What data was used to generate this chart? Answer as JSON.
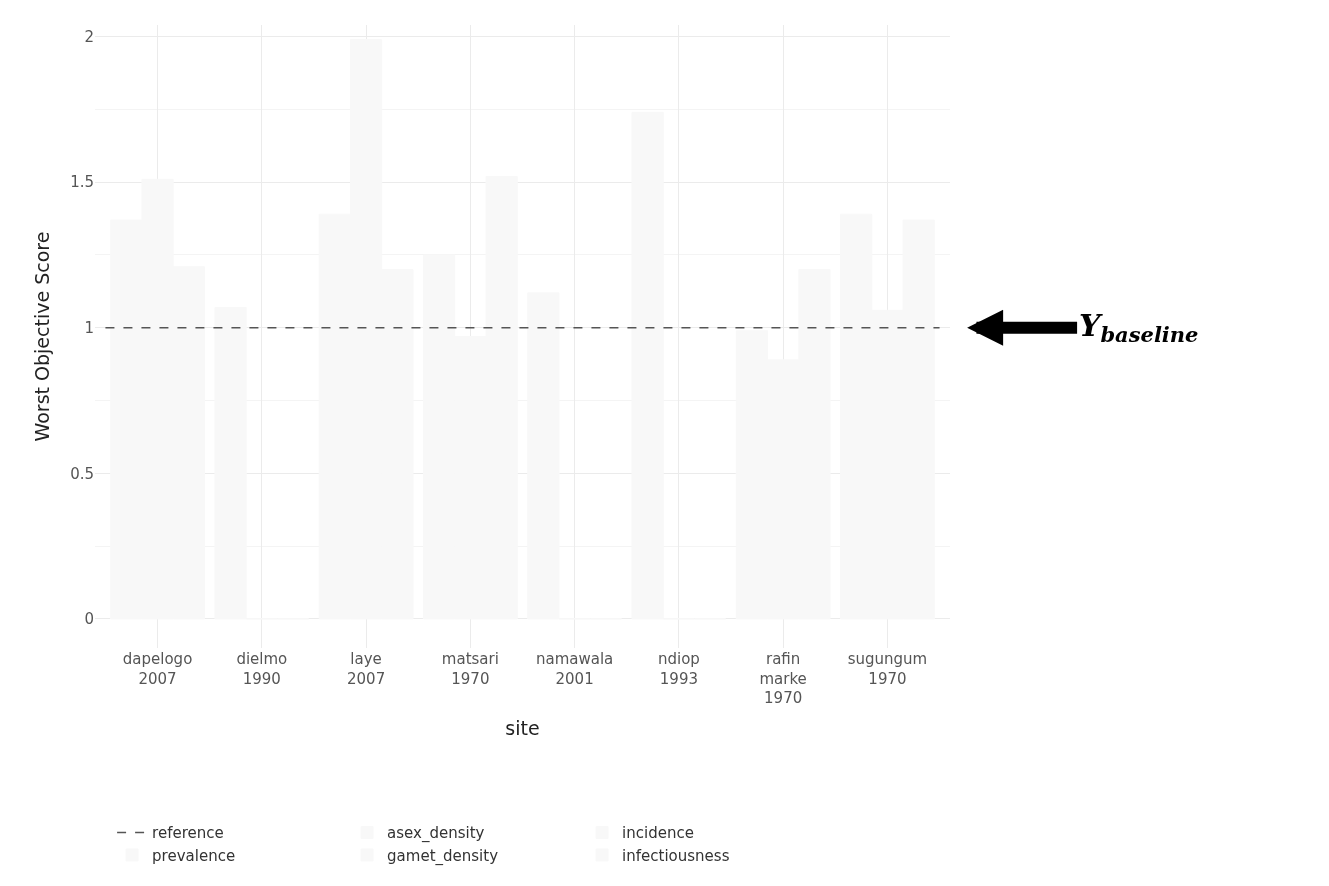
{
  "chart_data": {
    "type": "bar",
    "xlabel": "site",
    "ylabel": "Worst Objective Score",
    "categories": [
      "dapelogo\n2007",
      "dielmo\n1990",
      "laye\n2007",
      "matsari\n1970",
      "namawala\n2001",
      "ndiop\n1993",
      "rafin\nmarke\n1970",
      "sugungum\n1970"
    ],
    "series": [
      {
        "name": "asex_density",
        "color": "#f8f8f8",
        "values": [
          1.37,
          1.07,
          1.39,
          1.25,
          1.12,
          1.74,
          0.99,
          1.39
        ]
      },
      {
        "name": "gamet_density",
        "color": "#f8f8f8",
        "values": [
          null,
          null,
          null,
          null,
          null,
          null,
          null,
          null
        ]
      },
      {
        "name": "incidence",
        "color": "#f8f8f8",
        "values": [
          1.51,
          0,
          1.99,
          0.97,
          0,
          0,
          0.89,
          1.06
        ]
      },
      {
        "name": "infectiousness",
        "color": "#f8f8f8",
        "values": [
          null,
          null,
          null,
          null,
          null,
          null,
          null,
          null
        ]
      },
      {
        "name": "prevalence",
        "color": "#f8f8f8",
        "values": [
          1.21,
          0,
          1.2,
          1.52,
          0,
          0,
          1.2,
          1.37
        ]
      }
    ],
    "ylim": [
      -0.1,
      2.04
    ],
    "yticks": [
      0,
      0.5,
      1,
      1.5,
      2
    ],
    "ref_lines": [
      {
        "axis": "y",
        "value": 1,
        "label": "reference",
        "color": "#555555",
        "line_style": "dashed"
      }
    ],
    "annotations": [
      "Y$_{baseline}$"
    ],
    "grid": true,
    "legend": "bottom"
  }
}
